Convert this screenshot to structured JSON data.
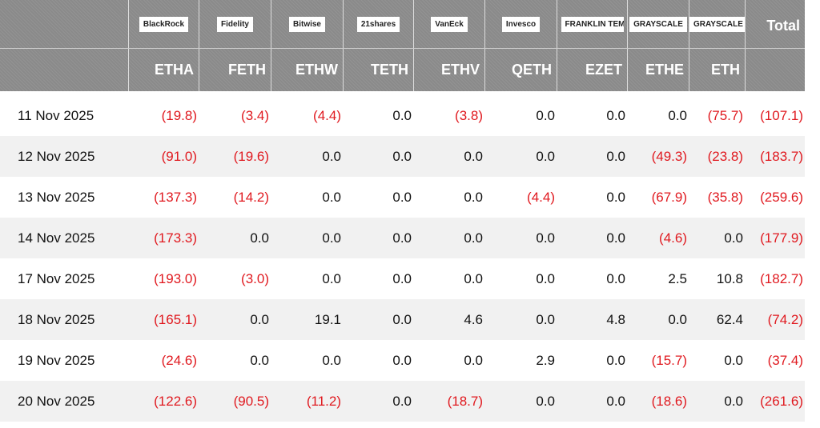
{
  "header": {
    "logos": [
      "BlackRock",
      "Fidelity",
      "Bitwise",
      "21shares",
      "VanEck",
      "Invesco",
      "FRANKLIN TEMPLETON",
      "GRAYSCALE",
      "GRAYSCALE"
    ],
    "total": "Total",
    "tickers": [
      "ETHA",
      "FETH",
      "ETHW",
      "TETH",
      "ETHV",
      "QETH",
      "EZET",
      "ETHE",
      "ETH"
    ]
  },
  "table": {
    "rows": [
      [
        "11 Nov 2025",
        "(19.8)",
        "(3.4)",
        "(4.4)",
        "0.0",
        "(3.8)",
        "0.0",
        "0.0",
        "0.0",
        "(75.7)",
        "(107.1)"
      ],
      [
        "12 Nov 2025",
        "(91.0)",
        "(19.6)",
        "0.0",
        "0.0",
        "0.0",
        "0.0",
        "0.0",
        "(49.3)",
        "(23.8)",
        "(183.7)"
      ],
      [
        "13 Nov 2025",
        "(137.3)",
        "(14.2)",
        "0.0",
        "0.0",
        "0.0",
        "(4.4)",
        "0.0",
        "(67.9)",
        "(35.8)",
        "(259.6)"
      ],
      [
        "14 Nov 2025",
        "(173.3)",
        "0.0",
        "0.0",
        "0.0",
        "0.0",
        "0.0",
        "0.0",
        "(4.6)",
        "0.0",
        "(177.9)"
      ],
      [
        "17 Nov 2025",
        "(193.0)",
        "(3.0)",
        "0.0",
        "0.0",
        "0.0",
        "0.0",
        "0.0",
        "2.5",
        "10.8",
        "(182.7)"
      ],
      [
        "18 Nov 2025",
        "(165.1)",
        "0.0",
        "19.1",
        "0.0",
        "4.6",
        "0.0",
        "4.8",
        "0.0",
        "62.4",
        "(74.2)"
      ],
      [
        "19 Nov 2025",
        "(24.6)",
        "0.0",
        "0.0",
        "0.0",
        "0.0",
        "2.9",
        "0.0",
        "(15.7)",
        "0.0",
        "(37.4)"
      ],
      [
        "20 Nov 2025",
        "(122.6)",
        "(90.5)",
        "(11.2)",
        "0.0",
        "(18.7)",
        "0.0",
        "0.0",
        "(18.6)",
        "0.0",
        "(261.6)"
      ]
    ]
  }
}
